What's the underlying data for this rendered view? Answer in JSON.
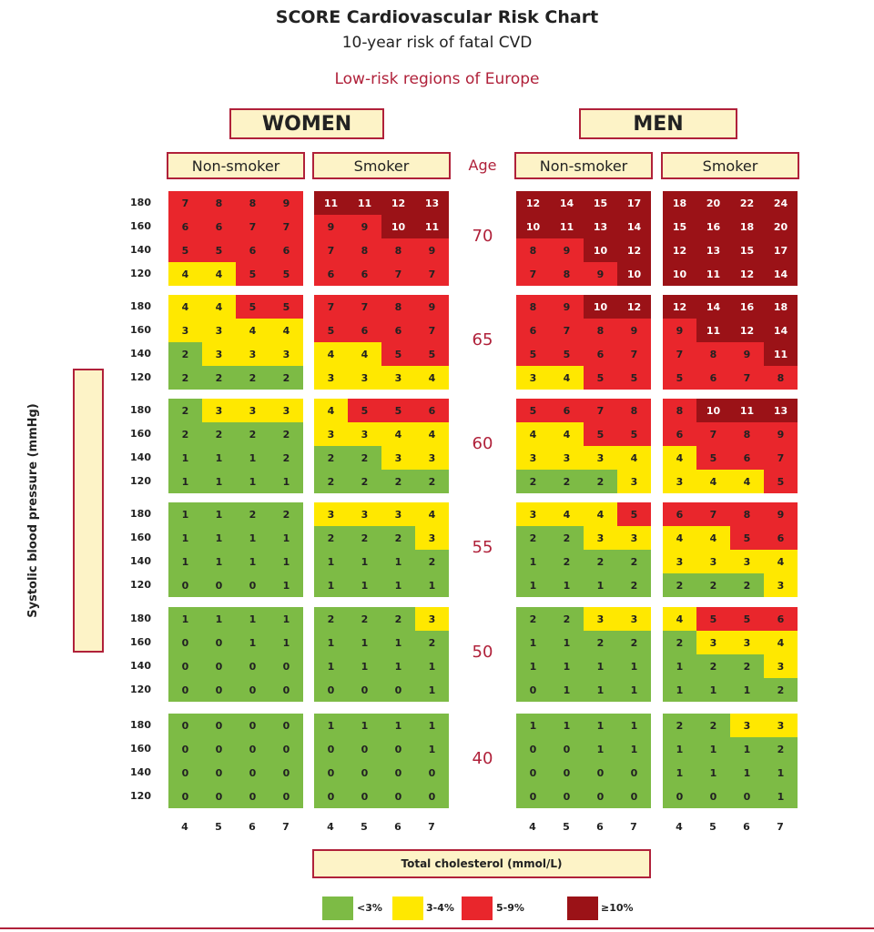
{
  "chart_data": {
    "type": "heatmap",
    "title": "SCORE Cardiovascular Risk Chart",
    "subtitle": "10-year risk of fatal CVD",
    "region": "Low-risk regions of Europe",
    "xlabel": "Total cholesterol (mmol/L)",
    "ylabel": "Systolic blood pressure (mmHg)",
    "age_header": "Age",
    "sex_labels": [
      "WOMEN",
      "MEN"
    ],
    "smoking_labels": [
      "Non-smoker",
      "Smoker"
    ],
    "ages": [
      70,
      65,
      60,
      55,
      50,
      40
    ],
    "sbp_levels": [
      180,
      160,
      140,
      120
    ],
    "cholesterol_levels": [
      4,
      5,
      6,
      7
    ],
    "legend": [
      {
        "label": "<3%",
        "color": "#7dbb45"
      },
      {
        "label": "3-4%",
        "color": "#ffe800"
      },
      {
        "label": "5-9%",
        "color": "#e9262c"
      },
      {
        "label": "≥10%",
        "color": "#9b1217"
      }
    ],
    "panels": {
      "women_nonsmoker": [
        [
          [
            7,
            8,
            8,
            9
          ],
          [
            6,
            6,
            7,
            7
          ],
          [
            5,
            5,
            6,
            6
          ],
          [
            4,
            4,
            5,
            5
          ]
        ],
        [
          [
            4,
            4,
            5,
            5
          ],
          [
            3,
            3,
            4,
            4
          ],
          [
            2,
            3,
            3,
            3
          ],
          [
            2,
            2,
            2,
            2
          ]
        ],
        [
          [
            2,
            3,
            3,
            3
          ],
          [
            2,
            2,
            2,
            2
          ],
          [
            1,
            1,
            1,
            2
          ],
          [
            1,
            1,
            1,
            1
          ]
        ],
        [
          [
            1,
            1,
            2,
            2
          ],
          [
            1,
            1,
            1,
            1
          ],
          [
            1,
            1,
            1,
            1
          ],
          [
            0,
            0,
            0,
            1
          ]
        ],
        [
          [
            1,
            1,
            1,
            1
          ],
          [
            0,
            0,
            1,
            1
          ],
          [
            0,
            0,
            0,
            0
          ],
          [
            0,
            0,
            0,
            0
          ]
        ],
        [
          [
            0,
            0,
            0,
            0
          ],
          [
            0,
            0,
            0,
            0
          ],
          [
            0,
            0,
            0,
            0
          ],
          [
            0,
            0,
            0,
            0
          ]
        ]
      ],
      "women_smoker": [
        [
          [
            11,
            11,
            12,
            13
          ],
          [
            9,
            9,
            10,
            11
          ],
          [
            7,
            8,
            8,
            9
          ],
          [
            6,
            6,
            7,
            7
          ]
        ],
        [
          [
            7,
            7,
            8,
            9
          ],
          [
            5,
            6,
            6,
            7
          ],
          [
            4,
            4,
            5,
            5
          ],
          [
            3,
            3,
            3,
            4
          ]
        ],
        [
          [
            4,
            5,
            5,
            6
          ],
          [
            3,
            3,
            4,
            4
          ],
          [
            2,
            2,
            3,
            3
          ],
          [
            2,
            2,
            2,
            2
          ]
        ],
        [
          [
            3,
            3,
            3,
            4
          ],
          [
            2,
            2,
            2,
            3
          ],
          [
            1,
            1,
            1,
            2
          ],
          [
            1,
            1,
            1,
            1
          ]
        ],
        [
          [
            2,
            2,
            2,
            3
          ],
          [
            1,
            1,
            1,
            2
          ],
          [
            1,
            1,
            1,
            1
          ],
          [
            0,
            0,
            0,
            1
          ]
        ],
        [
          [
            1,
            1,
            1,
            1
          ],
          [
            0,
            0,
            0,
            1
          ],
          [
            0,
            0,
            0,
            0
          ],
          [
            0,
            0,
            0,
            0
          ]
        ]
      ],
      "men_nonsmoker": [
        [
          [
            12,
            14,
            15,
            17
          ],
          [
            10,
            11,
            13,
            14
          ],
          [
            8,
            9,
            10,
            12
          ],
          [
            7,
            8,
            9,
            10
          ]
        ],
        [
          [
            8,
            9,
            10,
            12
          ],
          [
            6,
            7,
            8,
            9
          ],
          [
            5,
            5,
            6,
            7
          ],
          [
            3,
            4,
            5,
            5
          ]
        ],
        [
          [
            5,
            6,
            7,
            8
          ],
          [
            4,
            4,
            5,
            5
          ],
          [
            3,
            3,
            3,
            4
          ],
          [
            2,
            2,
            2,
            3
          ]
        ],
        [
          [
            3,
            4,
            4,
            5
          ],
          [
            2,
            2,
            3,
            3
          ],
          [
            1,
            2,
            2,
            2
          ],
          [
            1,
            1,
            1,
            2
          ]
        ],
        [
          [
            2,
            2,
            3,
            3
          ],
          [
            1,
            1,
            2,
            2
          ],
          [
            1,
            1,
            1,
            1
          ],
          [
            0,
            1,
            1,
            1
          ]
        ],
        [
          [
            1,
            1,
            1,
            1
          ],
          [
            0,
            0,
            1,
            1
          ],
          [
            0,
            0,
            0,
            0
          ],
          [
            0,
            0,
            0,
            0
          ]
        ]
      ],
      "men_smoker": [
        [
          [
            18,
            20,
            22,
            24
          ],
          [
            15,
            16,
            18,
            20
          ],
          [
            12,
            13,
            15,
            17
          ],
          [
            10,
            11,
            12,
            14
          ]
        ],
        [
          [
            12,
            14,
            16,
            18
          ],
          [
            9,
            11,
            12,
            14
          ],
          [
            7,
            8,
            9,
            11
          ],
          [
            5,
            6,
            7,
            8
          ]
        ],
        [
          [
            8,
            10,
            11,
            13
          ],
          [
            6,
            7,
            8,
            9
          ],
          [
            4,
            5,
            6,
            7
          ],
          [
            3,
            4,
            4,
            5
          ]
        ],
        [
          [
            6,
            7,
            8,
            9
          ],
          [
            4,
            4,
            5,
            6
          ],
          [
            3,
            3,
            3,
            4
          ],
          [
            2,
            2,
            2,
            3
          ]
        ],
        [
          [
            4,
            5,
            5,
            6
          ],
          [
            2,
            3,
            3,
            4
          ],
          [
            1,
            2,
            2,
            3
          ],
          [
            1,
            1,
            1,
            2
          ]
        ],
        [
          [
            2,
            2,
            3,
            3
          ],
          [
            1,
            1,
            1,
            2
          ],
          [
            1,
            1,
            1,
            1
          ],
          [
            0,
            0,
            0,
            1
          ]
        ]
      ]
    }
  }
}
